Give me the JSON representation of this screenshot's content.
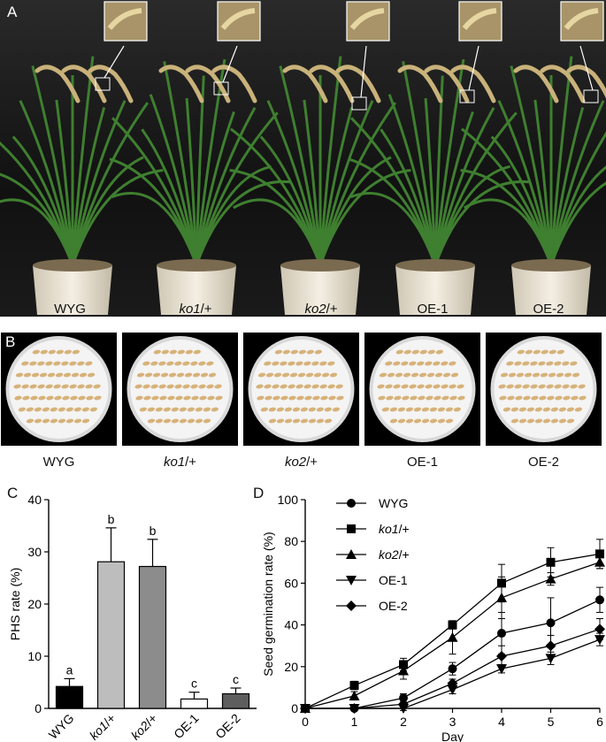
{
  "panel_a": {
    "letter": "A",
    "pot_labels": [
      "WYG",
      "ko1/+",
      "ko2/+",
      "OE-1",
      "OE-2"
    ]
  },
  "panel_b": {
    "letter": "B",
    "dish_labels": [
      "WYG",
      "ko1/+",
      "ko2/+",
      "OE-1",
      "OE-2"
    ]
  },
  "chart_data": [
    {
      "panel": "C",
      "type": "bar",
      "categories": [
        "WYG",
        "ko1/+",
        "ko2/+",
        "OE-1",
        "OE-2"
      ],
      "values": [
        4.2,
        28.1,
        27.2,
        1.8,
        2.8
      ],
      "errors": [
        1.5,
        6.5,
        5.2,
        1.3,
        1.1
      ],
      "significance": [
        "a",
        "b",
        "b",
        "c",
        "c"
      ],
      "bar_colors": [
        "#000000",
        "#bdbdbd",
        "#8c8c8c",
        "#ffffff",
        "#5e5e5e"
      ],
      "ylabel": "PHS rate (%)",
      "ylim": [
        0,
        40
      ],
      "yticks": [
        "0",
        "10",
        "20",
        "30",
        "40"
      ]
    },
    {
      "panel": "D",
      "type": "line",
      "x": [
        0,
        1,
        2,
        3,
        4,
        5,
        6
      ],
      "xticks": [
        "0",
        "1",
        "2",
        "3",
        "4",
        "5",
        "6"
      ],
      "xlabel": "Day",
      "ylabel": "Seed germination rate (%)",
      "ylim": [
        0,
        100
      ],
      "yticks": [
        "0",
        "20",
        "40",
        "60",
        "80",
        "100"
      ],
      "legend_position": "top-left",
      "series": [
        {
          "name": "WYG",
          "marker": "circle",
          "values": [
            0,
            0,
            5,
            19,
            36,
            41,
            52
          ],
          "errors": [
            0,
            0,
            2,
            3,
            10,
            12,
            6
          ]
        },
        {
          "name": "ko1/+",
          "marker": "square",
          "values": [
            0,
            11,
            21,
            40,
            60,
            70,
            74
          ],
          "errors": [
            0,
            2,
            3,
            2,
            9,
            7,
            7
          ]
        },
        {
          "name": "ko2/+",
          "marker": "triangle-up",
          "values": [
            0,
            6,
            18,
            34,
            53,
            62,
            70
          ],
          "errors": [
            0,
            2,
            4,
            8,
            10,
            3,
            3
          ]
        },
        {
          "name": "OE-1",
          "marker": "triangle-down",
          "values": [
            0,
            0,
            0,
            9,
            19,
            24,
            33
          ],
          "errors": [
            0,
            0,
            1,
            2,
            2,
            3,
            3
          ]
        },
        {
          "name": "OE-2",
          "marker": "diamond",
          "values": [
            0,
            0,
            2,
            12,
            25,
            30,
            38
          ],
          "errors": [
            0,
            0,
            1,
            2,
            5,
            5,
            5
          ]
        }
      ]
    }
  ]
}
